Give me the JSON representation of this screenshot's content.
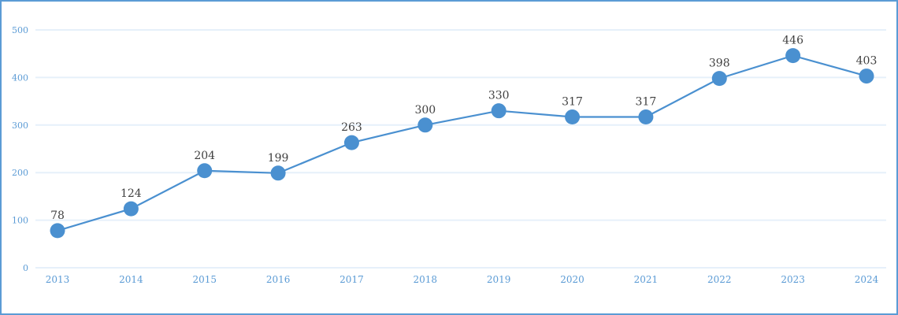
{
  "chart_data": {
    "type": "line",
    "title": "",
    "xlabel": "",
    "ylabel": "",
    "categories": [
      "2013",
      "2014",
      "2015",
      "2016",
      "2017",
      "2018",
      "2019",
      "2020",
      "2021",
      "2022",
      "2023",
      "2024"
    ],
    "series": [
      {
        "name": "",
        "values": [
          78,
          124,
          204,
          199,
          263,
          300,
          330,
          317,
          317,
          398,
          446,
          403
        ],
        "color": "#4a90d0"
      }
    ],
    "ylim": [
      0,
      500
    ],
    "yticks": [
      0,
      100,
      200,
      300,
      400,
      500
    ],
    "grid": true,
    "legend": "none",
    "data_labels": true
  },
  "colors": {
    "border": "#5b9bd5",
    "grid": "#e6f0fa",
    "tick_text": "#5b9bd5",
    "line": "#4a90d0",
    "label_text": "#404040"
  }
}
